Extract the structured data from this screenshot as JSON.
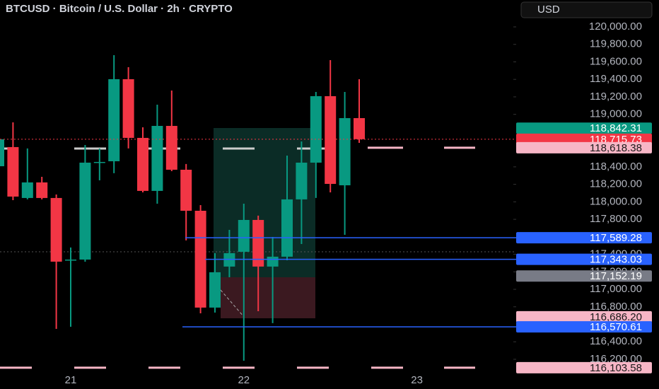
{
  "chart_data": {
    "type": "candlestick",
    "title": "BTCUSD · Bitcoin / U.S. Dollar · 2h · CRYPTO",
    "currency": "USD",
    "categories": [
      null,
      null,
      null,
      null,
      null,
      "21",
      null,
      null,
      null,
      null,
      null,
      null,
      null,
      null,
      null,
      null,
      null,
      "22",
      null,
      null,
      null,
      null,
      null,
      null,
      null,
      null,
      null,
      null,
      null,
      "23"
    ],
    "open": [
      118407,
      118626,
      118044,
      118222,
      118044,
      117332,
      117340,
      118448,
      118464,
      119402,
      118731,
      118125,
      118868,
      118367,
      117898,
      116791,
      117260,
      117429,
      117793,
      117260,
      117373,
      118028,
      118448,
      119208,
      118189,
      118957,
      null,
      null,
      null,
      null
    ],
    "high": [
      118771,
      118909,
      118610,
      118286,
      118084,
      117478,
      118650,
      118610,
      119677,
      119539,
      118852,
      119111,
      119272,
      118432,
      117963,
      117413,
      117680,
      117979,
      117842,
      117599,
      118529,
      118690,
      119256,
      119620,
      119256,
      119402,
      null,
      null,
      null,
      null
    ],
    "low": [
      118407,
      118019,
      118028,
      118028,
      116548,
      116572,
      117316,
      118246,
      118327,
      118610,
      118108,
      117979,
      118351,
      117559,
      116726,
      116734,
      117138,
      116184,
      116750,
      116613,
      117332,
      117518,
      118044,
      118108,
      117623,
      118674,
      null,
      null,
      null,
      null
    ],
    "close": [
      118715,
      118060,
      118222,
      118044,
      117316,
      117340,
      118448,
      118456,
      119402,
      118731,
      118125,
      118868,
      118367,
      117898,
      116791,
      117195,
      117413,
      117793,
      117260,
      117373,
      118028,
      118448,
      119208,
      118205,
      118957,
      118716,
      null,
      null,
      null,
      null
    ],
    "colors": {
      "up": "#089981",
      "down": "#f23645"
    },
    "ylim": [
      116000,
      120300
    ],
    "yticks": [
      {
        "value": 120000,
        "label": "120,000.00"
      },
      {
        "value": 119800,
        "label": "119,800.00"
      },
      {
        "value": 119600,
        "label": "119,600.00"
      },
      {
        "value": 119400,
        "label": "119,400.00"
      },
      {
        "value": 119200,
        "label": "119,200.00"
      },
      {
        "value": 119000,
        "label": "119,000.00"
      },
      {
        "value": 118400,
        "label": "118,400.00"
      },
      {
        "value": 118200,
        "label": "118,200.00"
      },
      {
        "value": 118000,
        "label": "118,000.00"
      },
      {
        "value": 117800,
        "label": "117,800.00"
      },
      {
        "value": 117400,
        "label": "117,400.00"
      },
      {
        "value": 117200,
        "label": "117,200.00"
      },
      {
        "value": 117000,
        "label": "117,000.00"
      },
      {
        "value": 116800,
        "label": "116,800.00"
      },
      {
        "value": 116400,
        "label": "116,400.00"
      },
      {
        "value": 116200,
        "label": "116,200.00"
      }
    ],
    "price_labels": [
      {
        "value": 118842.31,
        "label": "118,842.31",
        "color": "#089981"
      },
      {
        "value": 118715.73,
        "label": "118,715.73",
        "color": "#f23645"
      },
      {
        "value": 118618.38,
        "label": "118,618.38",
        "color": "#f7b6c6"
      },
      {
        "value": 117589.28,
        "label": "117,589.28",
        "color": "#2962ff"
      },
      {
        "value": 117343.03,
        "label": "117,343.03",
        "color": "#2962ff"
      },
      {
        "value": 117152.19,
        "label": "117,152.19",
        "color": "#787b86"
      },
      {
        "value": 116686.2,
        "label": "116,686.20",
        "color": "#f7b6c6"
      },
      {
        "value": 116570.61,
        "label": "116,570.61",
        "color": "#2962ff"
      },
      {
        "value": 116103.58,
        "label": "116,103.58",
        "color": "#f7b6c6"
      }
    ]
  }
}
